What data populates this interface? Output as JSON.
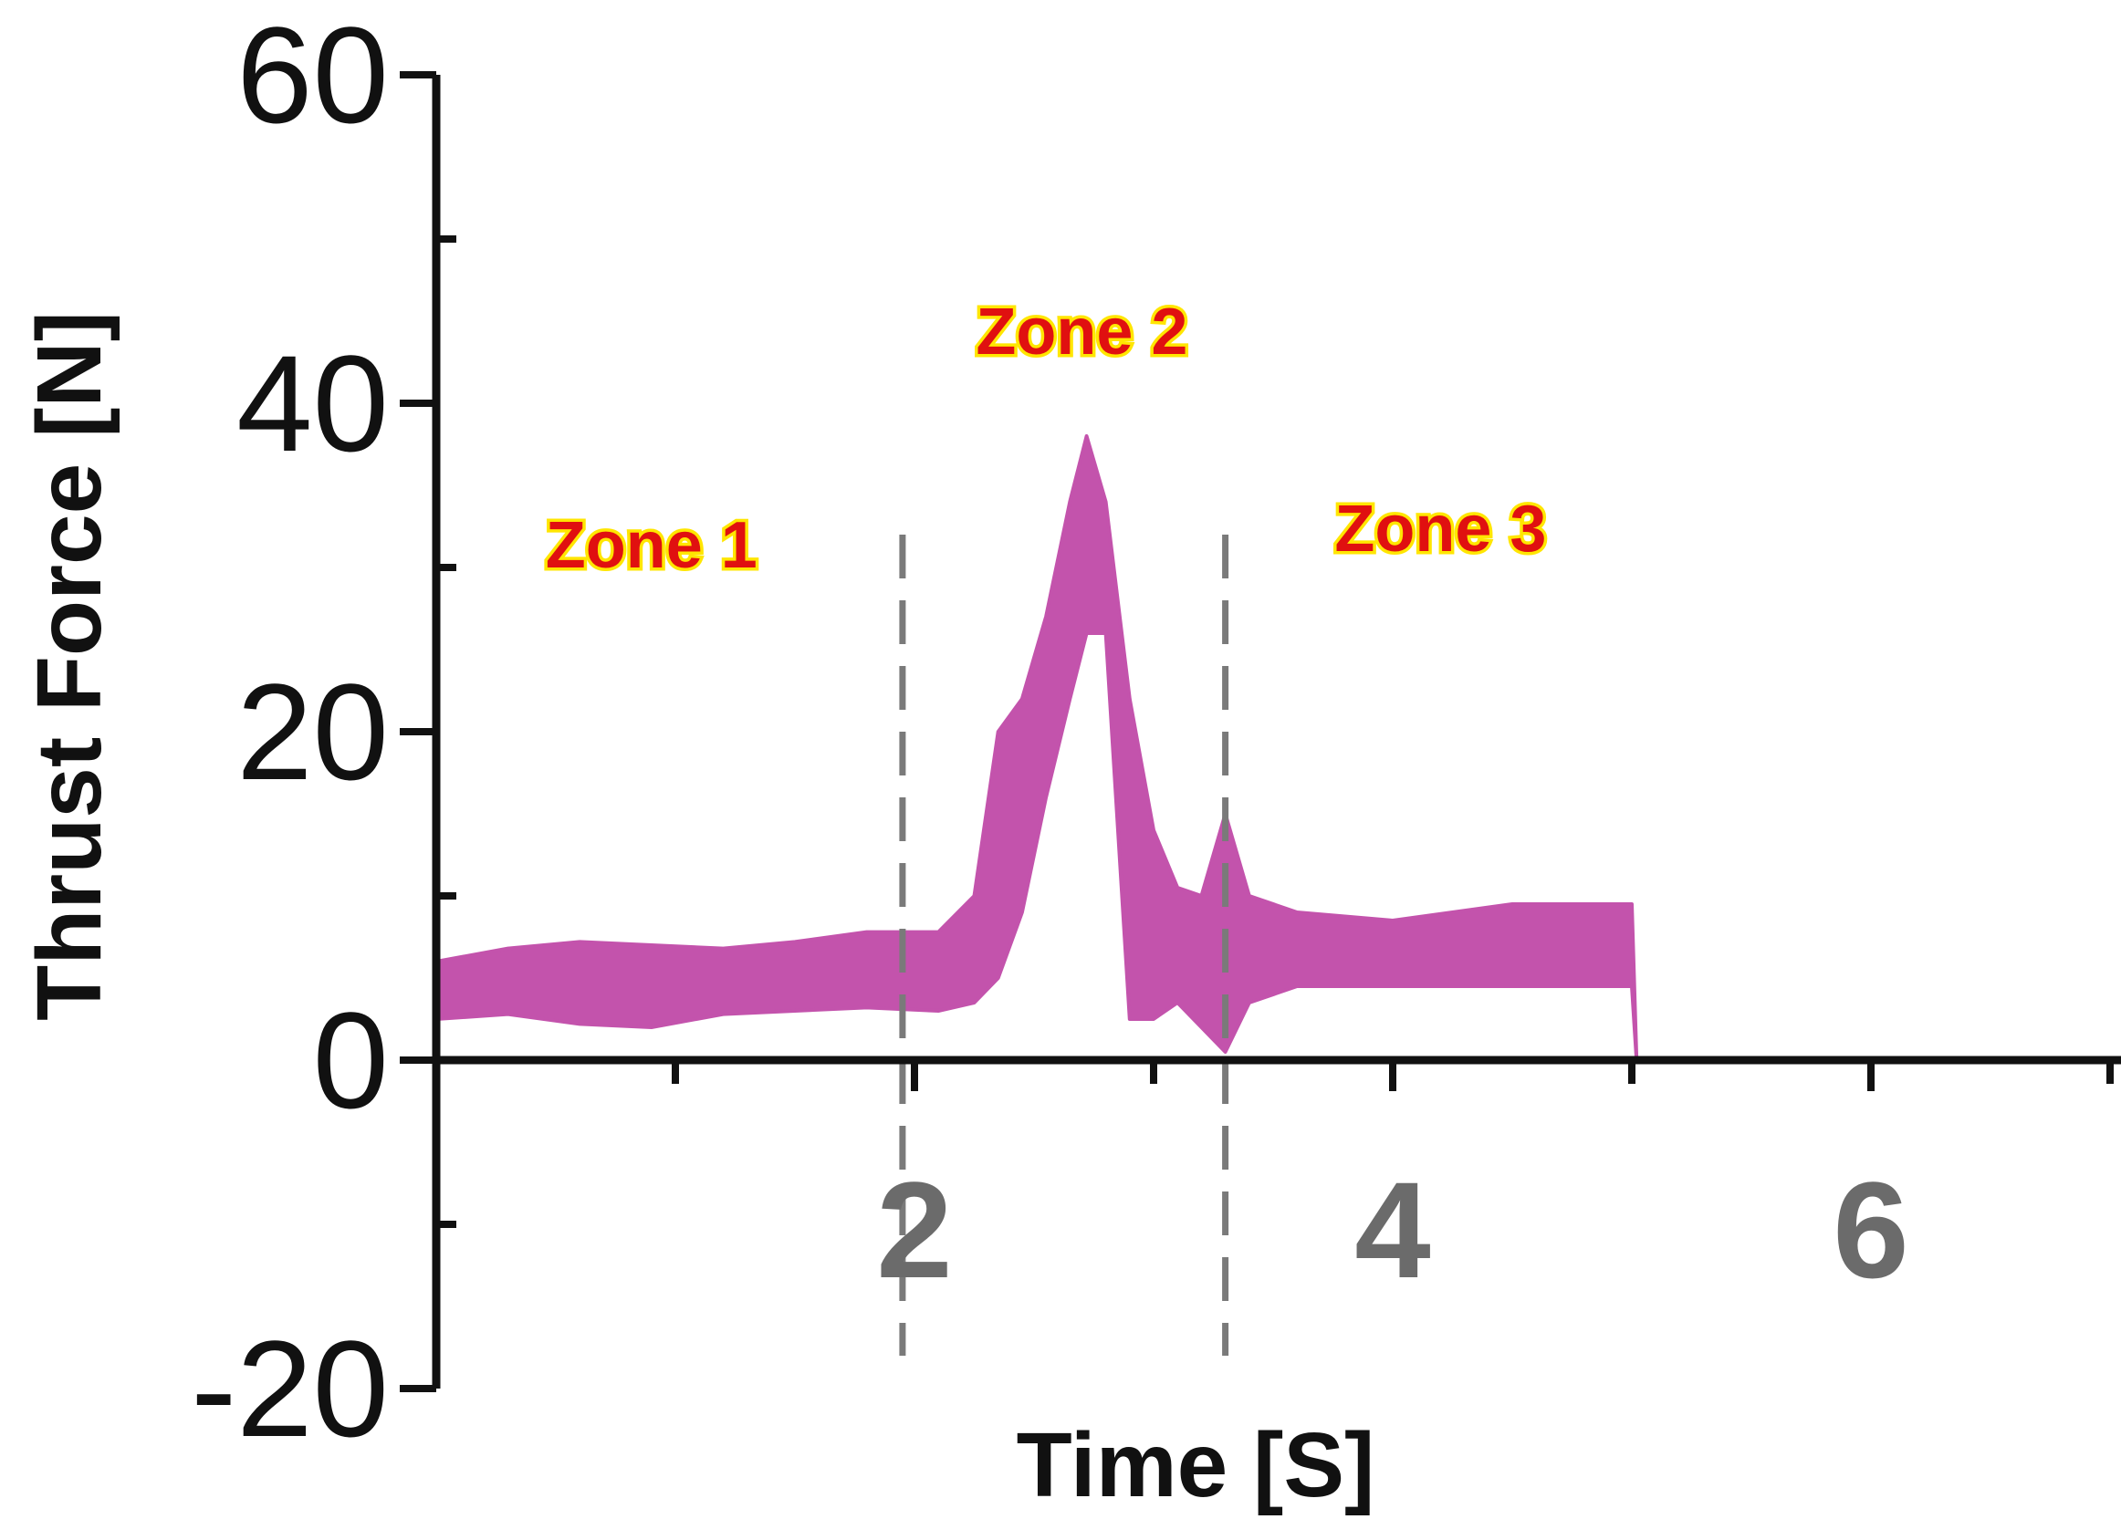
{
  "chart_data": {
    "type": "area",
    "xlabel": "Time [S]",
    "ylabel": "Thrust Force [N]",
    "xlim": [
      0,
      7
    ],
    "ylim": [
      -20,
      60
    ],
    "xticks": [
      2,
      4,
      6
    ],
    "xtick_labels": [
      "2",
      "4",
      "6"
    ],
    "yticks": [
      -20,
      0,
      20,
      40,
      60
    ],
    "ytick_labels": [
      "-20",
      "0",
      "20",
      "40",
      "60"
    ],
    "zone_dividers": [
      1.95,
      3.3
    ],
    "zones": [
      {
        "label": "Zone 1",
        "x_center": 0.9,
        "y": 30
      },
      {
        "label": "Zone 2",
        "x_center": 2.7,
        "y": 43
      },
      {
        "label": "Zone 3",
        "x_center": 4.2,
        "y": 31
      }
    ],
    "series": [
      {
        "color": "#c04aa8",
        "x": [
          0.0,
          0.3,
          0.6,
          0.9,
          1.2,
          1.5,
          1.8,
          2.1,
          2.25,
          2.35,
          2.45,
          2.55,
          2.65,
          2.72,
          2.8,
          2.9,
          3.0,
          3.1,
          3.2,
          3.3,
          3.4,
          3.6,
          4.0,
          4.5,
          5.0,
          5.02
        ],
        "upper": [
          6.0,
          6.8,
          7.2,
          7.0,
          6.8,
          7.2,
          7.8,
          7.8,
          10.0,
          20.0,
          22.0,
          27.0,
          34.0,
          38.0,
          34.0,
          22.0,
          14.0,
          10.5,
          10.0,
          15.0,
          10.0,
          9.0,
          8.5,
          9.5,
          9.5,
          0.0
        ],
        "lower": [
          2.5,
          2.8,
          2.2,
          2.0,
          2.8,
          3.0,
          3.2,
          3.0,
          3.5,
          5.0,
          9.0,
          16.0,
          22.0,
          26.0,
          26.0,
          2.5,
          2.5,
          3.5,
          2.0,
          0.5,
          3.5,
          4.5,
          4.5,
          4.5,
          4.5,
          0.0
        ]
      }
    ]
  }
}
